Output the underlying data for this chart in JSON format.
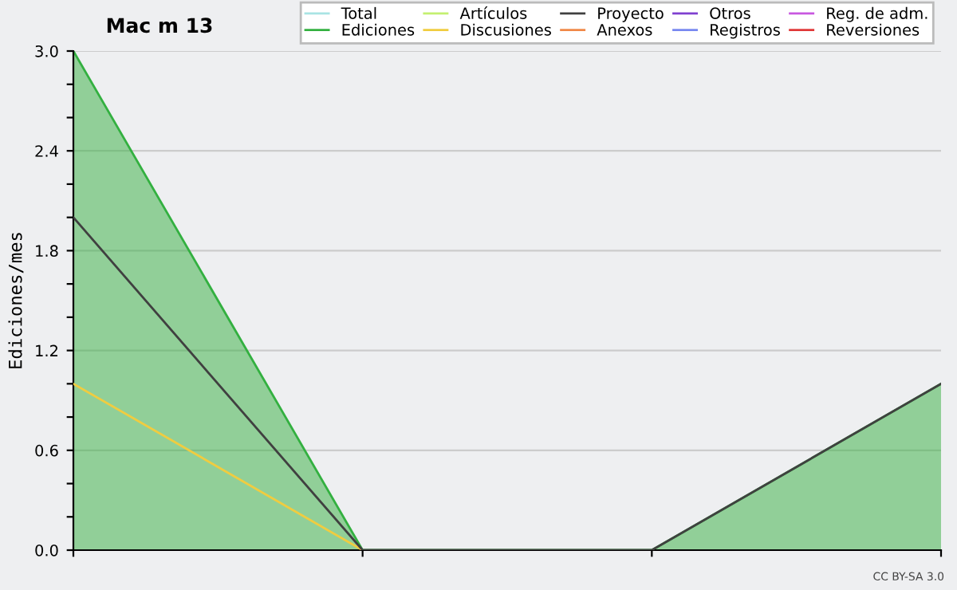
{
  "chart_data": {
    "type": "line",
    "title": "Mac m 13",
    "ylabel": "Ediciones/mes",
    "categories": [
      null,
      null,
      null,
      null
    ],
    "series": [
      {
        "name": "Total",
        "color": "#a8e4e4",
        "values": [
          null,
          null,
          null,
          null
        ]
      },
      {
        "name": "Ediciones",
        "color": "#33b040",
        "type": "area",
        "values": [
          3,
          0,
          0,
          1
        ]
      },
      {
        "name": "Artículos",
        "color": "#c4f070",
        "values": [
          null,
          null,
          null,
          null
        ]
      },
      {
        "name": "Discusiones",
        "color": "#f0cc40",
        "values": [
          1,
          0,
          null,
          null
        ]
      },
      {
        "name": "Proyecto",
        "color": "#404040",
        "values": [
          2,
          0,
          0,
          1
        ]
      },
      {
        "name": "Anexos",
        "color": "#f08848",
        "values": [
          null,
          null,
          null,
          null
        ]
      },
      {
        "name": "Otros",
        "color": "#8040d0",
        "values": [
          null,
          null,
          null,
          null
        ]
      },
      {
        "name": "Registros",
        "color": "#7888f0",
        "values": [
          null,
          null,
          null,
          null
        ]
      },
      {
        "name": "Reg. de adm.",
        "color": "#c858e0",
        "values": [
          null,
          null,
          null,
          null
        ]
      },
      {
        "name": "Reversiones",
        "color": "#e03838",
        "values": [
          null,
          null,
          null,
          null
        ]
      }
    ],
    "ylim": [
      0,
      3
    ],
    "yticks": [
      {
        "value": 0,
        "label": "0.0"
      },
      {
        "value": 0.2,
        "label": null
      },
      {
        "value": 0.4,
        "label": null
      },
      {
        "value": 0.6,
        "label": "0.6"
      },
      {
        "value": 0.8,
        "label": null
      },
      {
        "value": 1.0,
        "label": null
      },
      {
        "value": 1.2,
        "label": "1.2"
      },
      {
        "value": 1.4,
        "label": null
      },
      {
        "value": 1.6,
        "label": null
      },
      {
        "value": 1.8,
        "label": "1.8"
      },
      {
        "value": 2.0,
        "label": null
      },
      {
        "value": 2.2,
        "label": null
      },
      {
        "value": 2.4,
        "label": "2.4"
      },
      {
        "value": 2.6,
        "label": null
      },
      {
        "value": 2.8,
        "label": null
      },
      {
        "value": 3.0,
        "label": "3.0"
      }
    ],
    "grid": "y",
    "legend": "top right",
    "annotations": [
      "CC BY-SA 3.0"
    ]
  }
}
